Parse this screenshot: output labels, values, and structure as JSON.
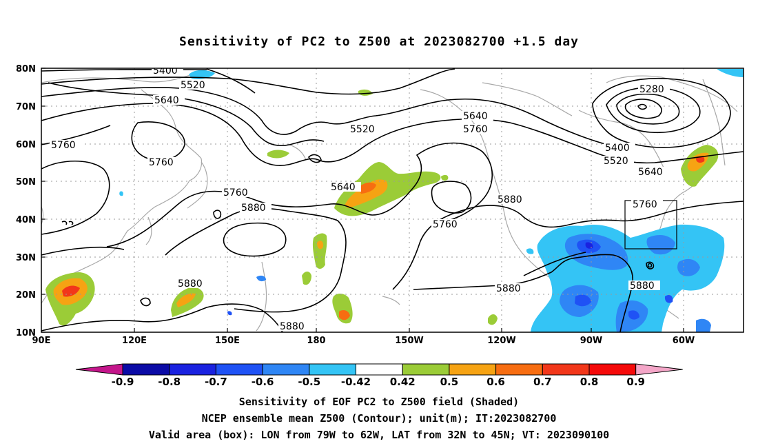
{
  "title": "Sensitivity of PC2 to Z500 at 2023082700 +1.5 day",
  "lat_labels": [
    "80N",
    "70N",
    "60N",
    "50N",
    "40N",
    "30N",
    "20N",
    "10N"
  ],
  "lon_labels": [
    "90E",
    "120E",
    "150E",
    "180",
    "150W",
    "120W",
    "90W",
    "60W"
  ],
  "contour_labels": [
    "5400",
    "5520",
    "5640",
    "5760",
    "5760",
    "5520",
    "5640",
    "5760",
    "5280",
    "5400",
    "5520",
    "5640",
    "5760",
    "5880",
    "5760",
    "5880",
    "5880",
    "5880",
    "5880",
    "5880"
  ],
  "colorbar": {
    "labels": [
      "-0.9",
      "-0.8",
      "-0.7",
      "-0.6",
      "-0.5",
      "-0.42",
      "0.42",
      "0.5",
      "0.6",
      "0.7",
      "0.8",
      "0.9"
    ],
    "colors": [
      "#0b0ba6",
      "#1a22e0",
      "#1f52f5",
      "#2f86f5",
      "#34c4f5",
      "#ffffff",
      "#9bcc37",
      "#f6a313",
      "#f76d11",
      "#f2371a",
      "#f50a0a"
    ],
    "low_end_color": "#c4168b",
    "high_end_color": "#f4a6c8"
  },
  "captions": [
    "Sensitivity of EOF PC2 to Z500 field (Shaded)",
    "NCEP ensemble mean Z500 (Contour); unit(m); IT:2023082700",
    "Valid area (box): LON from 79W to 62W, LAT from 32N to 45N; VT: 2023090100"
  ]
}
